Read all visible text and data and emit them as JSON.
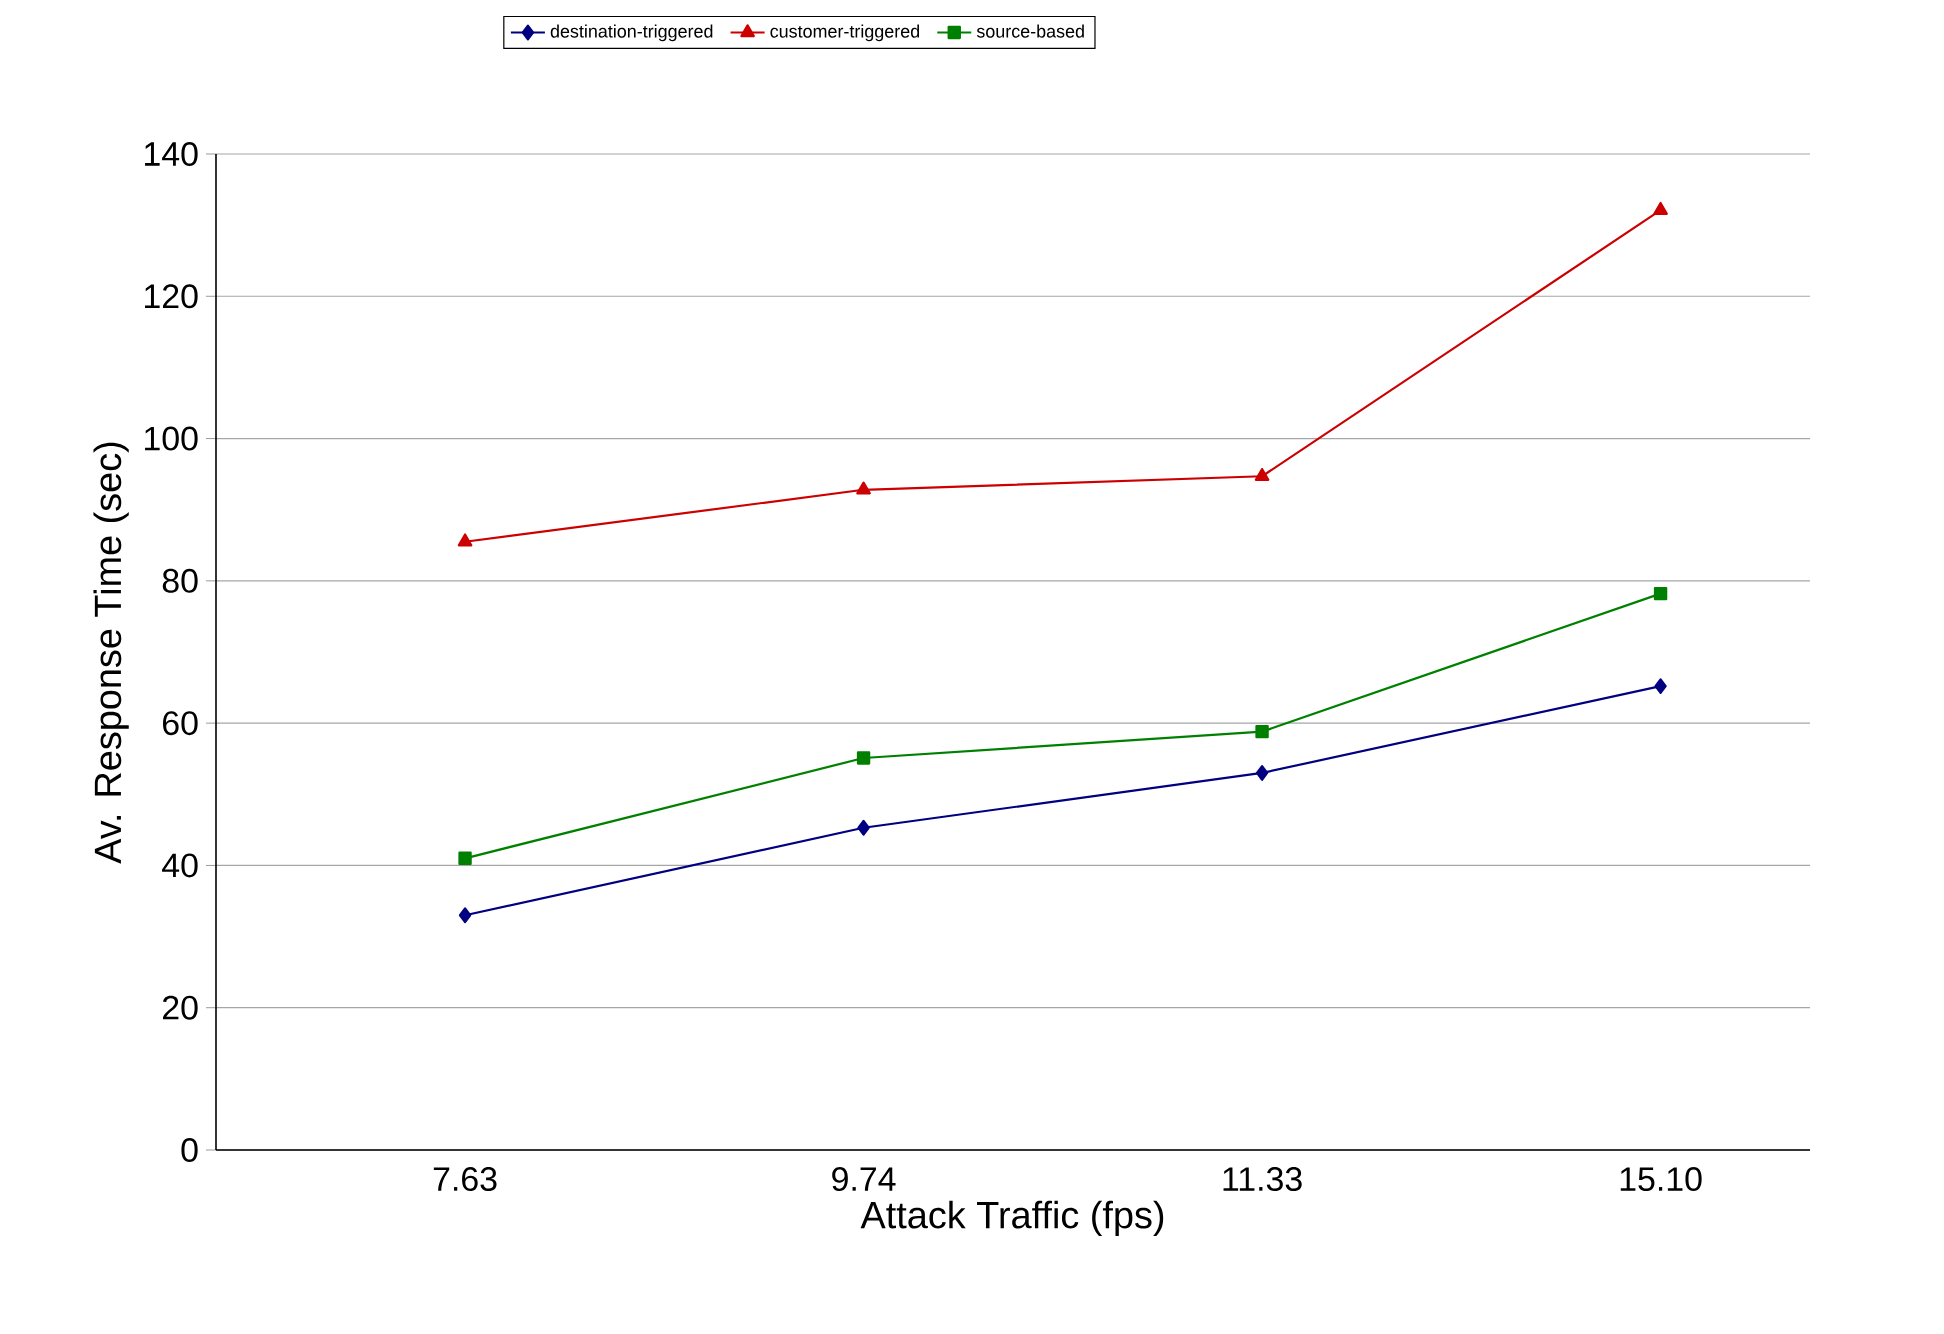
{
  "chart_data": {
    "type": "line",
    "xlabel": "Attack Traffic (fps)",
    "ylabel": "Av. Response Time (sec)",
    "categories": [
      "7.63",
      "9.74",
      "11.33",
      "15.10"
    ],
    "series": [
      {
        "name": "destination-triggered",
        "color": "#000080",
        "marker": "diamond",
        "values": [
          33,
          45.3,
          53,
          65.2
        ]
      },
      {
        "name": "customer-triggered",
        "color": "#cc0000",
        "marker": "triangle",
        "values": [
          85.5,
          92.8,
          94.7,
          132.1
        ]
      },
      {
        "name": "source-based",
        "color": "#008000",
        "marker": "square",
        "values": [
          41,
          55.1,
          58.8,
          78.2
        ]
      }
    ],
    "ylim": [
      0,
      140
    ],
    "yticks": [
      0,
      20,
      40,
      60,
      80,
      100,
      120,
      140
    ],
    "grid": "y",
    "legend": "top",
    "line_style": "solid"
  }
}
